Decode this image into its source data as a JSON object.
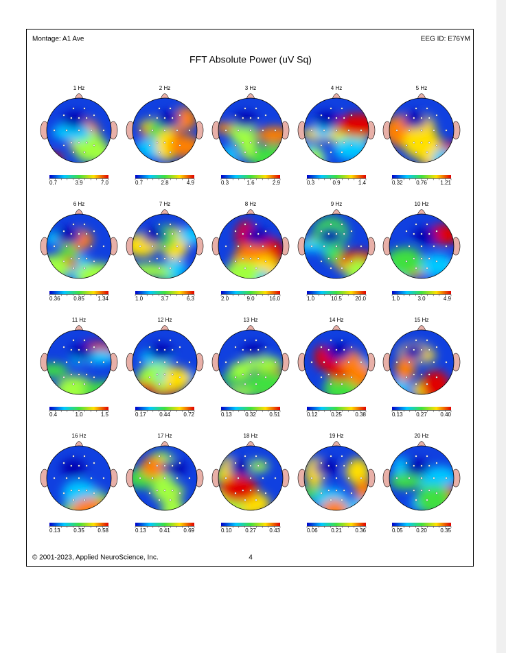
{
  "header": {
    "montage": "Montage:  A1 Ave",
    "eeg_id": "EEG ID:  E76YM",
    "title": "FFT Absolute Power  (uV Sq)"
  },
  "maps": [
    {
      "label": "1 Hz",
      "scale": [
        "0.7",
        "3.9",
        "7.0"
      ]
    },
    {
      "label": "2 Hz",
      "scale": [
        "0.7",
        "2.8",
        "4.9"
      ]
    },
    {
      "label": "3 Hz",
      "scale": [
        "0.3",
        "1.6",
        "2.9"
      ]
    },
    {
      "label": "4 Hz",
      "scale": [
        "0.3",
        "0.9",
        "1.4"
      ]
    },
    {
      "label": "5 Hz",
      "scale": [
        "0.32",
        "0.76",
        "1.21"
      ]
    },
    {
      "label": "6 Hz",
      "scale": [
        "0.36",
        "0.85",
        "1.34"
      ]
    },
    {
      "label": "7 Hz",
      "scale": [
        "1.0",
        "3.7",
        "6.3"
      ]
    },
    {
      "label": "8 Hz",
      "scale": [
        "2.0",
        "9.0",
        "16.0"
      ]
    },
    {
      "label": "9 Hz",
      "scale": [
        "1.0",
        "10.5",
        "20.0"
      ]
    },
    {
      "label": "10 Hz",
      "scale": [
        "1.0",
        "3.0",
        "4.9"
      ]
    },
    {
      "label": "11 Hz",
      "scale": [
        "0.4",
        "1.0",
        "1.5"
      ]
    },
    {
      "label": "12 Hz",
      "scale": [
        "0.17",
        "0.44",
        "0.72"
      ]
    },
    {
      "label": "13 Hz",
      "scale": [
        "0.13",
        "0.32",
        "0.51"
      ]
    },
    {
      "label": "14 Hz",
      "scale": [
        "0.12",
        "0.25",
        "0.38"
      ]
    },
    {
      "label": "15 Hz",
      "scale": [
        "0.13",
        "0.27",
        "0.40"
      ]
    },
    {
      "label": "16 Hz",
      "scale": [
        "0.13",
        "0.35",
        "0.58"
      ]
    },
    {
      "label": "17 Hz",
      "scale": [
        "0.13",
        "0.41",
        "0.69"
      ]
    },
    {
      "label": "18 Hz",
      "scale": [
        "0.10",
        "0.27",
        "0.43"
      ]
    },
    {
      "label": "19 Hz",
      "scale": [
        "0.06",
        "0.21",
        "0.36"
      ]
    },
    {
      "label": "20 Hz",
      "scale": [
        "0.05",
        "0.20",
        "0.35"
      ]
    }
  ],
  "footer": {
    "copyright": "© 2001-2023, Applied NeuroScience, Inc.",
    "page": "4"
  }
}
